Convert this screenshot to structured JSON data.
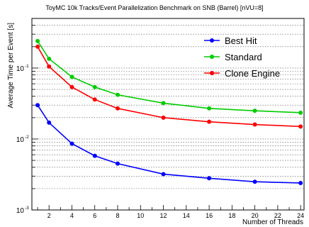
{
  "chart_data": {
    "type": "line",
    "title": "ToyMC 10k Tracks/Event Parallelization Benchmark on SNB (Barrel) [nVU=8]",
    "xlabel": "Number of Threads",
    "ylabel": "Average Time per Event [s]",
    "yscale": "log",
    "xlim": [
      0.5,
      24.3
    ],
    "ylim": [
      0.001,
      0.5
    ],
    "x_ticks": [
      2,
      4,
      6,
      8,
      10,
      12,
      14,
      16,
      18,
      20,
      22,
      24
    ],
    "x_tick_labels": [
      "2",
      "4",
      "6",
      "8",
      "10",
      "12",
      "14",
      "16",
      "18",
      "20",
      "22",
      "24"
    ],
    "y_ticks": [
      0.001,
      0.01,
      0.1
    ],
    "y_tick_labels": [
      "10",
      "10",
      "10"
    ],
    "y_tick_exponents": [
      "-3",
      "-2",
      "-1"
    ],
    "grid": "horizontal-dotted",
    "legend_placement": "top-right",
    "x": [
      1,
      2,
      4,
      6,
      8,
      12,
      16,
      20,
      24
    ],
    "series": [
      {
        "name": "Best Hit",
        "color": "#0000ff",
        "values": [
          0.03,
          0.017,
          0.0086,
          0.0058,
          0.0045,
          0.0032,
          0.0028,
          0.0025,
          0.0024
        ]
      },
      {
        "name": "Standard",
        "color": "#00cc00",
        "values": [
          0.24,
          0.135,
          0.075,
          0.054,
          0.042,
          0.032,
          0.027,
          0.025,
          0.0235
        ]
      },
      {
        "name": "Clone Engine",
        "color": "#ff0000",
        "values": [
          0.2,
          0.105,
          0.054,
          0.036,
          0.027,
          0.02,
          0.0175,
          0.016,
          0.015
        ]
      }
    ]
  }
}
